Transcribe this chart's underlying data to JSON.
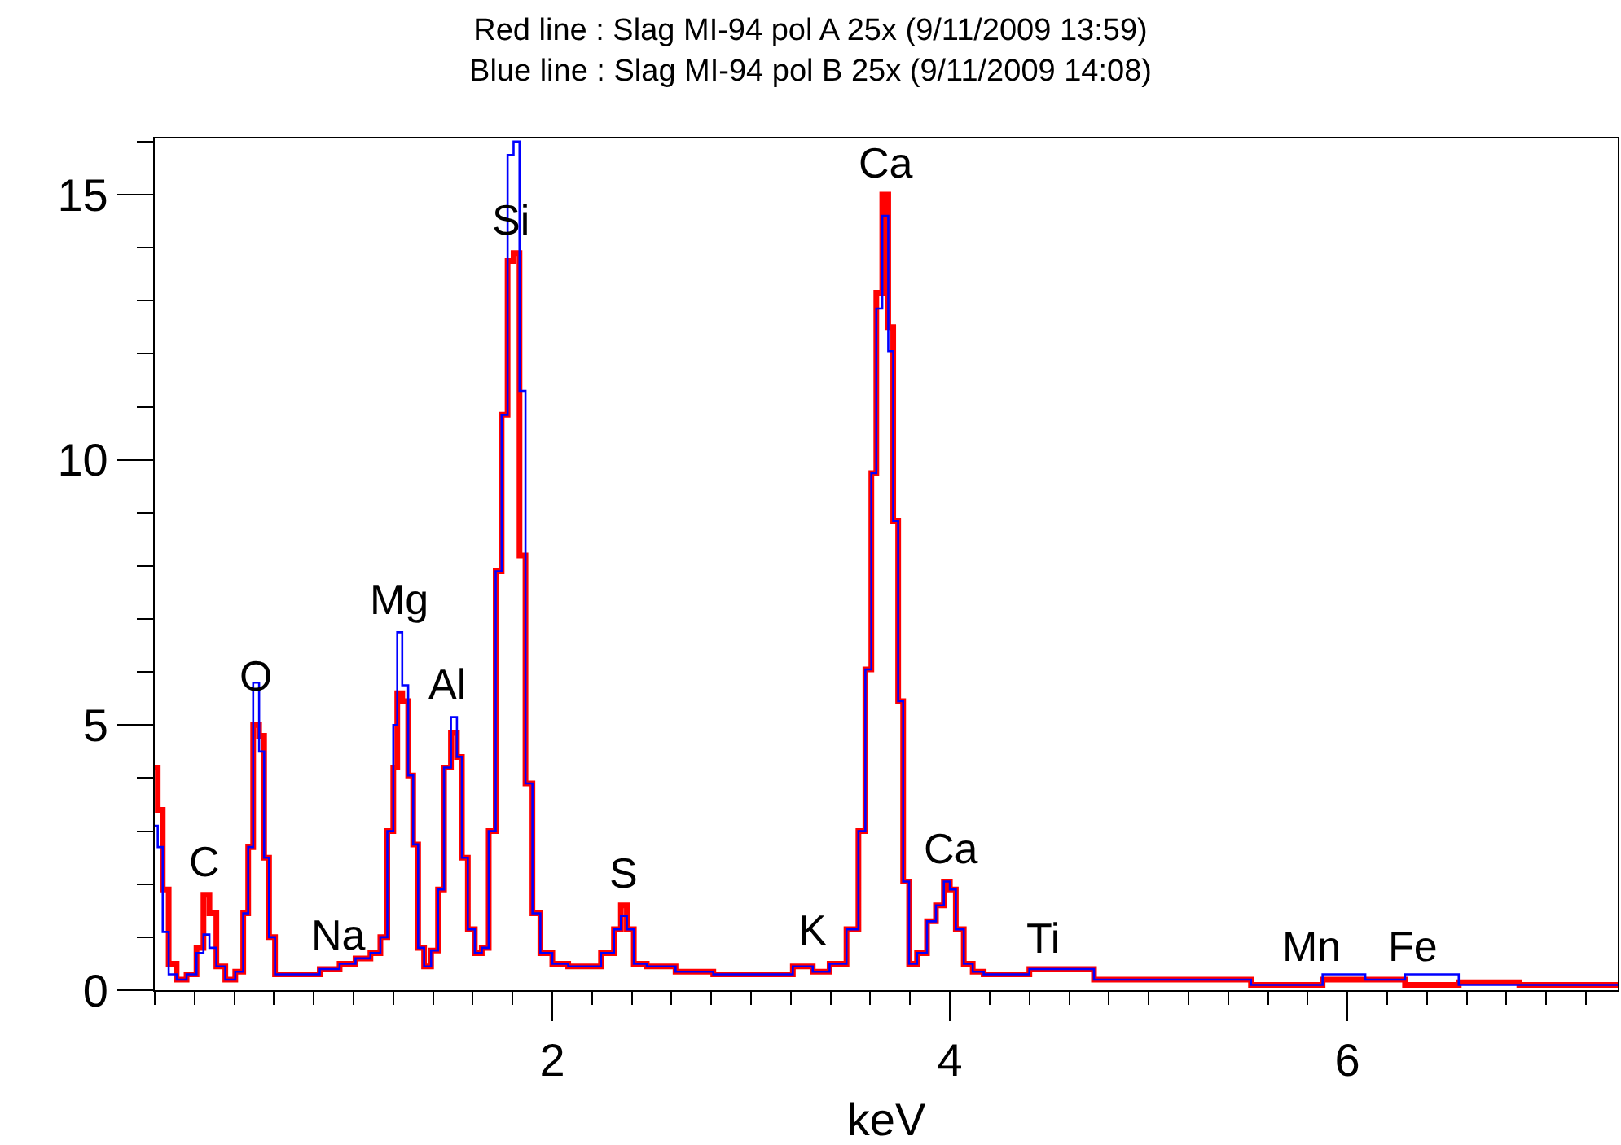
{
  "chart_data": {
    "type": "step",
    "title": "Red line : Slag MI-94 pol A 25x (9/11/2009 13:59)\nBlue line : Slag MI-94 pol B 25x (9/11/2009 14:08)",
    "xlabel": "keV",
    "x": [
      0.0,
      0.03,
      0.05,
      0.09,
      0.13,
      0.19,
      0.23,
      0.26,
      0.29,
      0.33,
      0.38,
      0.43,
      0.46,
      0.48,
      0.51,
      0.54,
      0.56,
      0.59,
      0.62,
      0.77,
      0.89,
      0.97,
      1.05,
      1.12,
      1.15,
      1.19,
      1.21,
      1.23,
      1.26,
      1.29,
      1.31,
      1.34,
      1.37,
      1.41,
      1.44,
      1.47,
      1.51,
      1.53,
      1.56,
      1.59,
      1.63,
      1.66,
      1.7,
      1.73,
      1.76,
      1.79,
      1.82,
      1.85,
      1.88,
      1.92,
      1.96,
      2.04,
      2.12,
      2.2,
      2.29,
      2.33,
      2.36,
      2.39,
      2.43,
      2.52,
      2.72,
      2.9,
      3.15,
      3.27,
      3.35,
      3.44,
      3.52,
      3.56,
      3.59,
      3.62,
      3.64,
      3.68,
      3.7,
      3.73,
      3.75,
      3.78,
      3.81,
      3.86,
      3.91,
      3.95,
      3.99,
      4.01,
      4.05,
      4.09,
      4.14,
      4.2,
      4.6,
      4.85,
      5.28,
      5.75,
      6.0,
      6.18,
      6.4,
      6.72,
      7.01,
      7.36
    ],
    "series": [
      {
        "color": "#ff0000",
        "values": [
          4.2,
          3.4,
          1.9,
          0.5,
          0.2,
          0.3,
          0.8,
          1.8,
          1.45,
          0.45,
          0.2,
          0.35,
          1.45,
          2.7,
          5.0,
          4.8,
          2.5,
          1.0,
          0.3,
          0.3,
          0.4,
          0.5,
          0.6,
          0.7,
          1.0,
          3.0,
          4.2,
          5.6,
          5.45,
          4.05,
          2.75,
          0.8,
          0.45,
          0.75,
          1.9,
          4.2,
          4.85,
          4.4,
          2.5,
          1.15,
          0.7,
          0.8,
          3.0,
          7.9,
          10.85,
          13.75,
          13.9,
          8.2,
          3.9,
          1.45,
          0.7,
          0.5,
          0.45,
          0.45,
          0.7,
          1.15,
          1.6,
          1.15,
          0.5,
          0.45,
          0.35,
          0.3,
          0.3,
          0.45,
          0.35,
          0.5,
          1.15,
          3.0,
          6.05,
          9.75,
          13.15,
          15.0,
          12.5,
          8.85,
          5.45,
          2.05,
          0.5,
          0.7,
          1.3,
          1.6,
          2.05,
          1.9,
          1.15,
          0.5,
          0.35,
          0.3,
          0.4,
          0.2,
          0.2,
          0.1,
          0.2,
          0.2,
          0.1,
          0.15,
          0.1,
          0.1
        ]
      },
      {
        "color": "#0000ff",
        "values": [
          3.1,
          2.7,
          1.1,
          0.3,
          0.2,
          0.3,
          0.7,
          1.05,
          0.8,
          0.45,
          0.2,
          0.35,
          1.45,
          2.7,
          5.8,
          4.5,
          2.5,
          1.0,
          0.3,
          0.3,
          0.4,
          0.5,
          0.6,
          0.7,
          1.0,
          3.0,
          5.0,
          6.75,
          5.75,
          4.05,
          2.75,
          0.8,
          0.45,
          0.75,
          1.9,
          4.2,
          5.15,
          4.4,
          2.5,
          1.15,
          0.7,
          0.8,
          3.0,
          7.9,
          10.85,
          15.75,
          16.0,
          11.3,
          3.9,
          1.45,
          0.7,
          0.5,
          0.45,
          0.45,
          0.7,
          1.15,
          1.4,
          1.15,
          0.5,
          0.45,
          0.35,
          0.3,
          0.3,
          0.45,
          0.35,
          0.5,
          1.15,
          3.0,
          6.05,
          9.75,
          12.85,
          14.6,
          12.05,
          8.85,
          5.45,
          2.05,
          0.5,
          0.7,
          1.3,
          1.6,
          2.05,
          1.9,
          1.15,
          0.5,
          0.35,
          0.3,
          0.4,
          0.2,
          0.2,
          0.1,
          0.3,
          0.2,
          0.3,
          0.1,
          0.1,
          0.1
        ]
      }
    ],
    "xlim": [
      0,
      7.36
    ],
    "ylim": [
      0,
      16.06
    ],
    "xticks": [
      2,
      4,
      6
    ],
    "yticks": [
      0,
      5,
      10,
      15
    ],
    "annotations": [
      {
        "text": "C",
        "x": 0.25,
        "y": 1.8
      },
      {
        "text": "O",
        "x": 0.505,
        "y": 5.3
      },
      {
        "text": "Na",
        "x": 0.93,
        "y": 0.43
      },
      {
        "text": "Mg",
        "x": 1.23,
        "y": 6.75
      },
      {
        "text": "Al",
        "x": 1.47,
        "y": 5.15
      },
      {
        "text": "Si",
        "x": 1.79,
        "y": 13.9
      },
      {
        "text": "S",
        "x": 2.36,
        "y": 1.6
      },
      {
        "text": "K",
        "x": 3.31,
        "y": 0.52
      },
      {
        "text": "Ca",
        "x": 3.68,
        "y": 15.0
      },
      {
        "text": "Ca",
        "x": 4.01,
        "y": 2.05
      },
      {
        "text": "Ti",
        "x": 4.47,
        "y": 0.37
      },
      {
        "text": "Mn",
        "x": 5.82,
        "y": 0.2
      },
      {
        "text": "Fe",
        "x": 6.33,
        "y": 0.2
      }
    ]
  }
}
